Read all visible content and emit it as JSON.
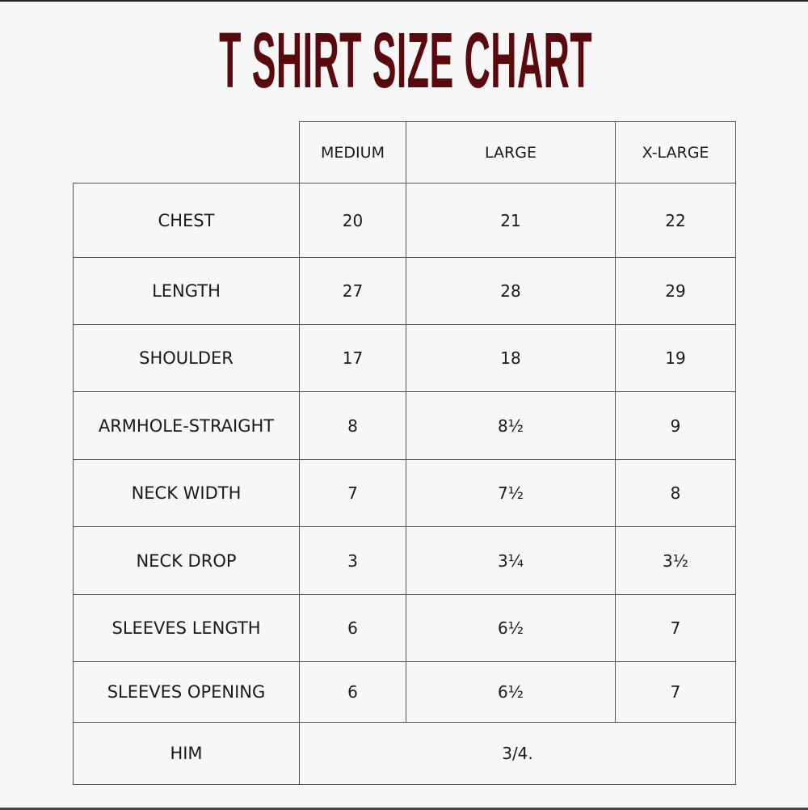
{
  "title": "T SHIRT SIZE CHART",
  "colors": {
    "title": "#5a0a0c",
    "background": "#f7f7f7",
    "grid": "#555555"
  },
  "table": {
    "columns": [
      "MEDIUM",
      "LARGE",
      "X-LARGE"
    ],
    "rows": [
      {
        "label": "CHEST",
        "values": [
          "20",
          "21",
          "22"
        ]
      },
      {
        "label": "LENGTH",
        "values": [
          "27",
          "28",
          "29"
        ]
      },
      {
        "label": "SHOULDER",
        "values": [
          "17",
          "18",
          "19"
        ]
      },
      {
        "label": "ARMHOLE-STRAIGHT",
        "values": [
          "8",
          "8½",
          "9"
        ]
      },
      {
        "label": "NECK WIDTH",
        "values": [
          "7",
          "7½",
          "8"
        ]
      },
      {
        "label": "NECK DROP",
        "values": [
          "3",
          "3¼",
          "3½"
        ]
      },
      {
        "label": "SLEEVES LENGTH",
        "values": [
          "6",
          "6½",
          "7"
        ]
      },
      {
        "label": "SLEEVES OPENING",
        "values": [
          "6",
          "6½",
          "7"
        ]
      },
      {
        "label": "HIM",
        "merged_value": "3/4."
      }
    ]
  }
}
